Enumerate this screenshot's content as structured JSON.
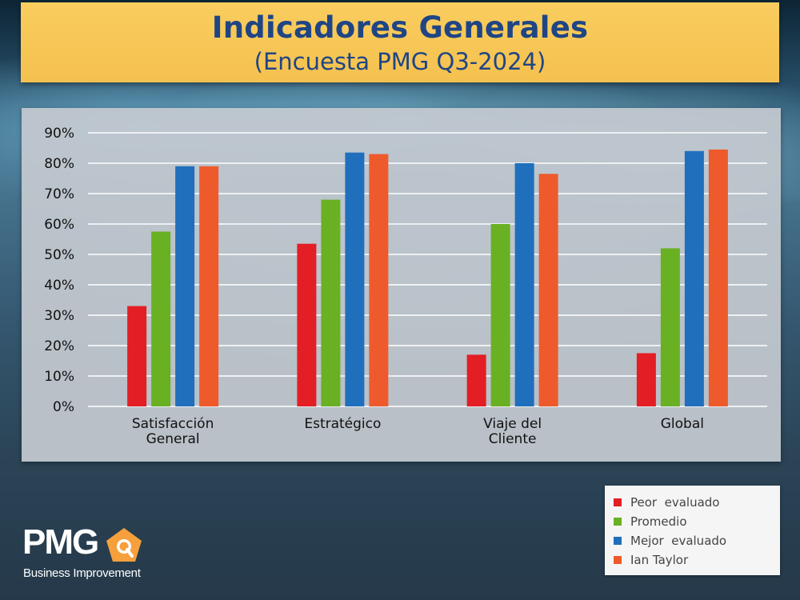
{
  "title": {
    "main": "Indicadores Generales",
    "subtitle": "(Encuesta PMG Q3-2024)"
  },
  "chart_data": {
    "type": "bar",
    "categories": [
      [
        "Satisfacción",
        "General"
      ],
      [
        "Estratégico"
      ],
      [
        "Viaje del",
        "Cliente"
      ],
      [
        "Global"
      ]
    ],
    "series": [
      {
        "name": "Peor  evaluado",
        "color": "#e31e24",
        "values": [
          33,
          53.5,
          17,
          17.5
        ]
      },
      {
        "name": "Promedio",
        "color": "#6ab023",
        "values": [
          57.5,
          68,
          60,
          52
        ]
      },
      {
        "name": "Mejor  evaluado",
        "color": "#1f6fbd",
        "values": [
          79,
          83.5,
          80,
          84
        ]
      },
      {
        "name": "Ian Taylor",
        "color": "#ee5a2c",
        "values": [
          79,
          83,
          76.5,
          84.5
        ]
      }
    ],
    "yticks": [
      "0%",
      "10%",
      "20%",
      "30%",
      "40%",
      "50%",
      "60%",
      "70%",
      "80%",
      "90%"
    ],
    "ylim": [
      0,
      90
    ],
    "grid": true,
    "legend_position": "bottom-right"
  },
  "logo": {
    "text": "PMG",
    "tagline": "Business Improvement",
    "accent_color": "#f5a03c"
  }
}
